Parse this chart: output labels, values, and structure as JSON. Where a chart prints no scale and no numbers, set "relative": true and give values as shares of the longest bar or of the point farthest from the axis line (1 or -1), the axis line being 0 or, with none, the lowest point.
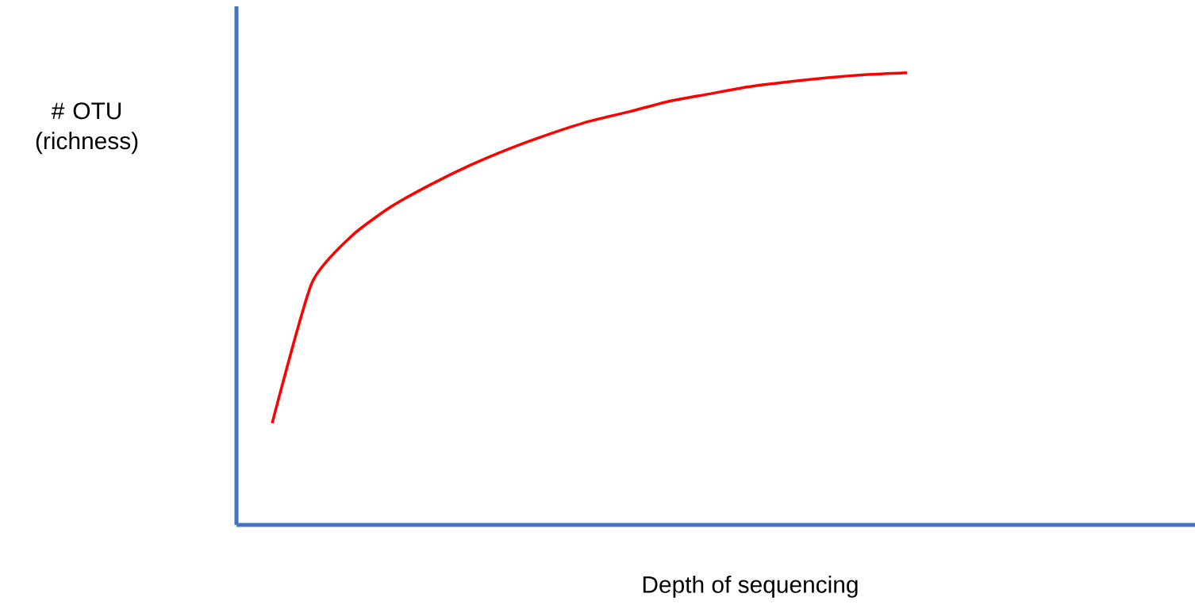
{
  "chart_data": {
    "type": "line",
    "relative": true,
    "xlabel": "Depth of sequencing",
    "ylabel": "# OTU (richness)",
    "color": "#ff0000",
    "categories": [
      null,
      null,
      null,
      null,
      null,
      null,
      null,
      null,
      null,
      null,
      null,
      null,
      null,
      null,
      null,
      null,
      null
    ],
    "values": [
      0.225,
      0.535,
      0.639,
      0.704,
      0.753,
      0.796,
      0.833,
      0.865,
      0.893,
      0.914,
      0.937,
      0.953,
      0.969,
      0.98,
      0.989,
      0.996,
      1
    ]
  }
}
